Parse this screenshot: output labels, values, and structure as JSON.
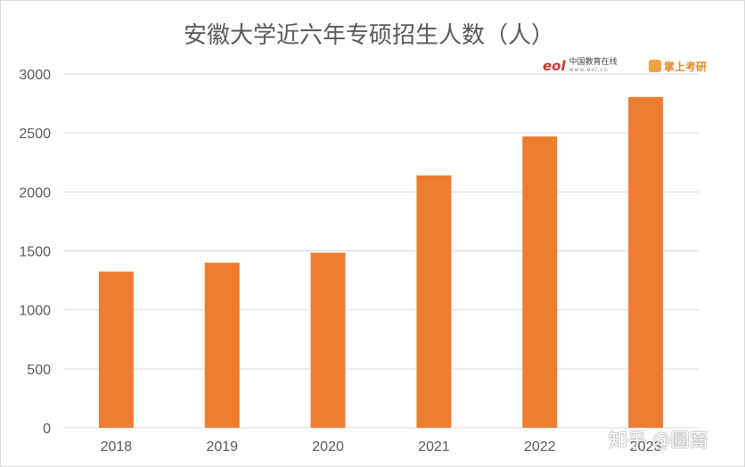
{
  "chart_data": {
    "type": "bar",
    "title": "安徽大学近六年专硕招生人数（人）",
    "categories": [
      "2018",
      "2019",
      "2020",
      "2021",
      "2022",
      "2023"
    ],
    "values": [
      1325,
      1400,
      1485,
      2140,
      2470,
      2805
    ],
    "ylim": [
      0,
      3000
    ],
    "yticks": [
      0,
      500,
      1000,
      1500,
      2000,
      2500,
      3000
    ],
    "grid": true,
    "bar_color": "#ed7d31"
  },
  "logos": {
    "eol_mark": "eol",
    "eol_name": "中国教育在线",
    "eol_url": "www.eol.cn",
    "kaoyan_name": "掌上考研"
  },
  "watermark": "知乎 @圆裔"
}
